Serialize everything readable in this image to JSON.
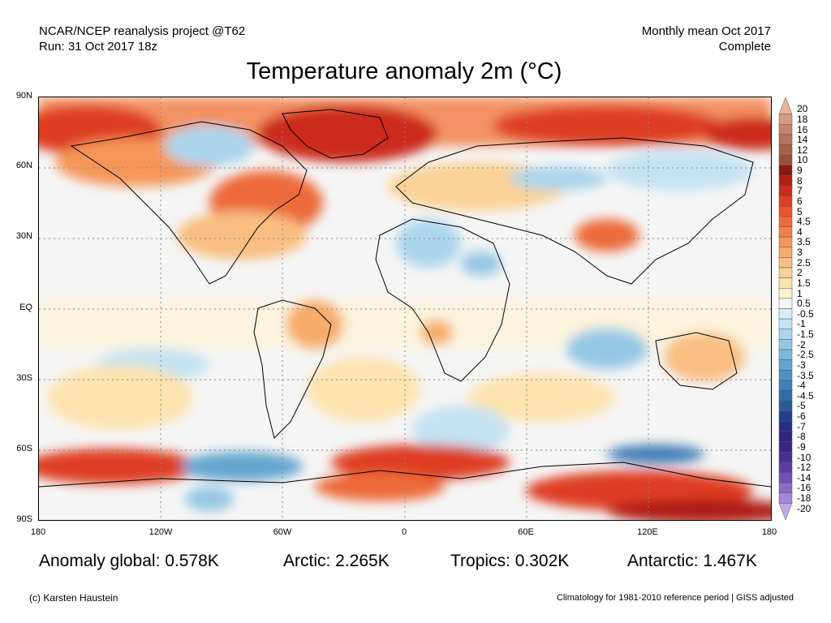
{
  "header": {
    "source": "NCAR/NCEP reanalysis project @T62",
    "run": "Run: 31 Oct 2017 18z",
    "period": "Monthly mean Oct 2017",
    "status": "Complete"
  },
  "title": "Temperature anomaly 2m (°C)",
  "axes": {
    "lat_ticks": [
      "90N",
      "60N",
      "30N",
      "EQ",
      "30S",
      "60S",
      "90S"
    ],
    "lon_ticks": [
      "180",
      "120W",
      "60W",
      "0",
      "60E",
      "120E",
      "180"
    ]
  },
  "colorbar": {
    "levels": [
      "20",
      "18",
      "16",
      "14",
      "12",
      "10",
      "9",
      "8",
      "7",
      "6",
      "5",
      "4.5",
      "4",
      "3.5",
      "3",
      "2.5",
      "2",
      "1.5",
      "1",
      "0.5",
      "-0.5",
      "-1",
      "-1.5",
      "-2",
      "-2.5",
      "-3",
      "-3.5",
      "-4",
      "-4.5",
      "-5",
      "-6",
      "-7",
      "-8",
      "-9",
      "-10",
      "-12",
      "-14",
      "-16",
      "-18",
      "-20"
    ],
    "colors": [
      "#e8b49a",
      "#d89a80",
      "#c88468",
      "#b87258",
      "#a86048",
      "#98503a",
      "#8a1a10",
      "#b01d14",
      "#cc2a1c",
      "#de3e24",
      "#e85530",
      "#ee6a3a",
      "#f28048",
      "#f59658",
      "#f7aa6a",
      "#f9be80",
      "#fbd296",
      "#fde3ad",
      "#fef1cd",
      "#f5f5f5",
      "#d9ecf7",
      "#c4e2f2",
      "#acd5ec",
      "#94c7e4",
      "#7ab6da",
      "#64a5d0",
      "#4f92c4",
      "#3f7fb8",
      "#336caa",
      "#2b5a9c",
      "#253f90",
      "#262f86",
      "#2e267e",
      "#3b2684",
      "#4a2e92",
      "#5c3ca4",
      "#7152b8",
      "#8a6cc8",
      "#a488d8",
      "#c0a8e8"
    ]
  },
  "stats": {
    "global": "Anomaly global: 0.578K",
    "arctic": "Arctic: 2.265K",
    "tropics": "Tropics: 0.302K",
    "antarctic": "Antarctic: 1.467K"
  },
  "footer": {
    "credit": "(c) Karsten Haustein",
    "climatology": "Climatology for 1981-2010 reference period | GISS adjusted"
  }
}
